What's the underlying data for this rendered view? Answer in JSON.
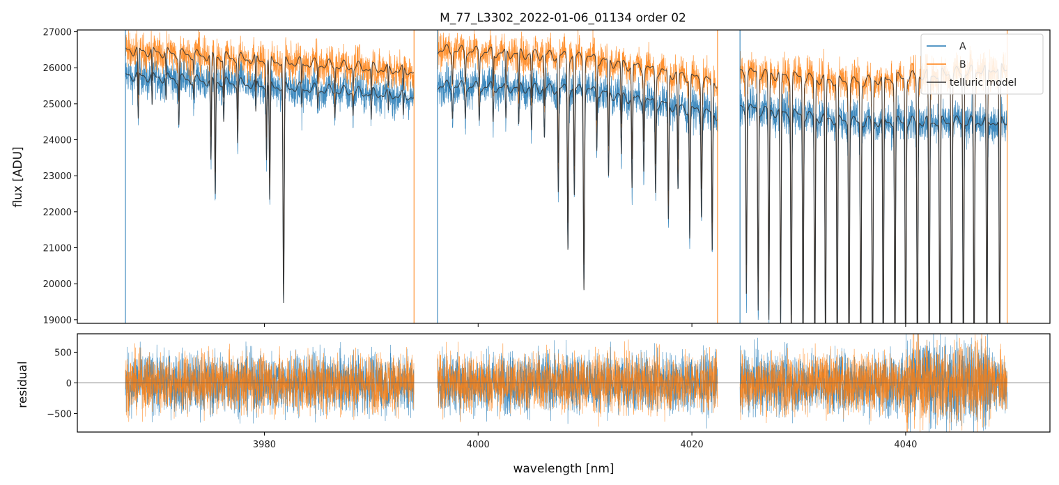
{
  "chart_data": [
    {
      "type": "line",
      "panel": "top",
      "title": "M_77_L3302_2022-01-06_01134  order 02",
      "xlabel": "",
      "ylabel": "flux [ADU]",
      "xlim": [
        3962.5,
        4053.5
      ],
      "ylim": [
        18900,
        27050
      ],
      "yticks": [
        19000,
        20000,
        21000,
        22000,
        23000,
        24000,
        25000,
        26000,
        27000
      ],
      "xticks": [
        3980,
        4000,
        4020,
        4040
      ],
      "segments": [
        [
          3967.0,
          3994.0
        ],
        [
          3996.2,
          4022.4
        ],
        [
          4024.5,
          4049.5
        ]
      ],
      "series": [
        {
          "name": "A",
          "color": "#1f77b4",
          "baseline": [
            [
              3967,
              25800
            ],
            [
              3994,
              25200
            ],
            [
              3996.2,
              25500
            ],
            [
              4010,
              25400
            ],
            [
              4022.4,
              24700
            ],
            [
              4024.5,
              24900
            ],
            [
              4035,
              24500
            ],
            [
              4049.5,
              24500
            ]
          ]
        },
        {
          "name": "B",
          "color": "#ff7f0e",
          "baseline": [
            [
              3967,
              26500
            ],
            [
              3994,
              25900
            ],
            [
              3996.2,
              26500
            ],
            [
              4010,
              26300
            ],
            [
              4022.4,
              25600
            ],
            [
              4024.5,
              25900
            ],
            [
              4035,
              25600
            ],
            [
              4049.5,
              26000
            ]
          ]
        },
        {
          "name": "telluric model",
          "color": "#333333"
        }
      ],
      "absorption_lines": [
        [
          3968.2,
          24200,
          0.06
        ],
        [
          3969.5,
          24600,
          0.05
        ],
        [
          3970.8,
          24800,
          0.05
        ],
        [
          3972.0,
          24300,
          0.06
        ],
        [
          3973.4,
          25000,
          0.05
        ],
        [
          3975.0,
          23200,
          0.07
        ],
        [
          3975.4,
          22400,
          0.07
        ],
        [
          3976.2,
          24400,
          0.06
        ],
        [
          3977.5,
          23900,
          0.06
        ],
        [
          3979.2,
          24600,
          0.05
        ],
        [
          3980.2,
          23500,
          0.06
        ],
        [
          3980.5,
          22200,
          0.07
        ],
        [
          3981.8,
          19400,
          0.08
        ],
        [
          3983.5,
          24900,
          0.05
        ],
        [
          3985.0,
          25000,
          0.05
        ],
        [
          3986.6,
          24800,
          0.05
        ],
        [
          3988.3,
          24900,
          0.05
        ],
        [
          3990.0,
          24700,
          0.05
        ],
        [
          3991.6,
          24900,
          0.05
        ],
        [
          3993.0,
          24800,
          0.05
        ],
        [
          3997.6,
          24700,
          0.06
        ],
        [
          3998.8,
          24700,
          0.06
        ],
        [
          4000.1,
          24600,
          0.06
        ],
        [
          4001.4,
          24500,
          0.06
        ],
        [
          4002.6,
          24500,
          0.06
        ],
        [
          4003.8,
          24400,
          0.06
        ],
        [
          4005.0,
          24300,
          0.06
        ],
        [
          4006.2,
          24100,
          0.06
        ],
        [
          4007.5,
          22600,
          0.07
        ],
        [
          4008.4,
          21100,
          0.08
        ],
        [
          4009.0,
          22500,
          0.07
        ],
        [
          4009.9,
          20000,
          0.08
        ],
        [
          4011.1,
          23900,
          0.06
        ],
        [
          4012.2,
          23100,
          0.07
        ],
        [
          4013.4,
          23800,
          0.06
        ],
        [
          4014.4,
          22900,
          0.07
        ],
        [
          4015.5,
          23600,
          0.06
        ],
        [
          4016.6,
          23000,
          0.07
        ],
        [
          4017.8,
          22200,
          0.07
        ],
        [
          4018.7,
          23100,
          0.07
        ],
        [
          4019.8,
          21800,
          0.07
        ],
        [
          4020.9,
          22600,
          0.07
        ],
        [
          4021.9,
          21500,
          0.07
        ],
        [
          4025.1,
          20300,
          0.07
        ],
        [
          4026.2,
          19800,
          0.07
        ],
        [
          4027.2,
          19500,
          0.07
        ],
        [
          4028.3,
          19300,
          0.07
        ],
        [
          4029.3,
          19000,
          0.07
        ],
        [
          4030.4,
          18600,
          0.07
        ],
        [
          4031.5,
          18400,
          0.07
        ],
        [
          4032.5,
          18300,
          0.07
        ],
        [
          4033.6,
          18200,
          0.07
        ],
        [
          4034.7,
          18000,
          0.07
        ],
        [
          4035.8,
          18000,
          0.07
        ],
        [
          4036.9,
          18000,
          0.07
        ],
        [
          4037.9,
          18000,
          0.07
        ],
        [
          4039.0,
          18000,
          0.07
        ],
        [
          4040.0,
          18000,
          0.07
        ],
        [
          4041.1,
          18000,
          0.07
        ],
        [
          4042.2,
          18000,
          0.07
        ],
        [
          4043.2,
          18000,
          0.07
        ],
        [
          4044.3,
          18000,
          0.07
        ],
        [
          4045.4,
          18000,
          0.07
        ],
        [
          4046.4,
          18000,
          0.07
        ],
        [
          4047.6,
          18000,
          0.07
        ],
        [
          4048.8,
          18000,
          0.07
        ]
      ],
      "legend": {
        "placement": "top-right",
        "entries": [
          "A",
          "B",
          "telluric model"
        ]
      }
    },
    {
      "type": "line",
      "panel": "bottom",
      "xlabel": "wavelength [nm]",
      "ylabel": "residual",
      "xlim": [
        3962.5,
        4053.5
      ],
      "ylim": [
        -800,
        800
      ],
      "yticks": [
        -500,
        0,
        500
      ],
      "ytick_labels": [
        "−500",
        "0",
        "500"
      ],
      "xticks": [
        3980,
        4000,
        4020,
        4040
      ],
      "xtick_labels": [
        "3980",
        "4000",
        "4020",
        "4040"
      ],
      "zero_line": true,
      "series": [
        {
          "name": "A",
          "color": "#1f77b4",
          "scatter": 250
        },
        {
          "name": "B",
          "color": "#ff7f0e",
          "scatter": 240
        }
      ]
    }
  ],
  "colors": {
    "A": "#1f77b4",
    "B": "#ff7f0e",
    "model": "#333333"
  }
}
